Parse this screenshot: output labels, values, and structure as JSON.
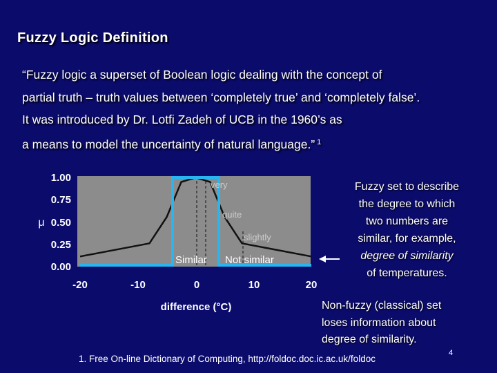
{
  "title": "Fuzzy Logic Definition",
  "quote": {
    "lines": [
      "“Fuzzy logic a superset of Boolean logic dealing with the concept of",
      "partial truth – truth values between ‘completely true’ and ‘completely false’.",
      "It was introduced by Dr. Lotfi Zadeh of UCB in the 1960’s as",
      "a means to model the uncertainty of natural language.”"
    ],
    "footnote_ref": "1"
  },
  "chart": {
    "y_axis_symbol": "μ",
    "y_ticks": [
      "1.00",
      "0.75",
      "0.50",
      "0.25",
      "0.00"
    ],
    "x_ticks": [
      "-20",
      "-10",
      "0",
      "10",
      "20"
    ],
    "x_label": "difference (°C)",
    "labels": {
      "very": "very",
      "quite": "quite",
      "slightly": "slightly",
      "similar": "Similar",
      "not_similar": "Not similar"
    },
    "colors": {
      "fuzzy_curve": "#111111",
      "crisp_set": "#29b6f0",
      "axis": "#111111"
    }
  },
  "chart_data": {
    "type": "line",
    "x_range": [
      -20,
      20
    ],
    "y_range": [
      0,
      1
    ],
    "series": [
      {
        "x": [
          -20,
          -8,
          -5,
          -2.5,
          0,
          2.5,
          5,
          8,
          20
        ],
        "y": [
          0.1,
          0.25,
          0.55,
          0.95,
          1.0,
          0.95,
          0.55,
          0.25,
          0.1
        ]
      },
      {
        "x": [
          -20,
          -4,
          -4,
          4,
          4,
          20
        ],
        "y": [
          0.0,
          0.0,
          1.0,
          1.0,
          0.0,
          0.0
        ]
      }
    ]
  },
  "right_note": {
    "lines": [
      "Fuzzy set to describe",
      "the degree to which",
      "two numbers are",
      "similar, for example,"
    ],
    "italic_line": "degree of similarity",
    "last_line": "of temperatures."
  },
  "nonfuzzy_note": {
    "lines": [
      "Non-fuzzy (classical) set",
      "loses information about",
      "degree of similarity."
    ]
  },
  "footnote": "1. Free On-line Dictionary of Computing, http://foldoc.doc.ic.ac.uk/foldoc",
  "page_number": "4"
}
